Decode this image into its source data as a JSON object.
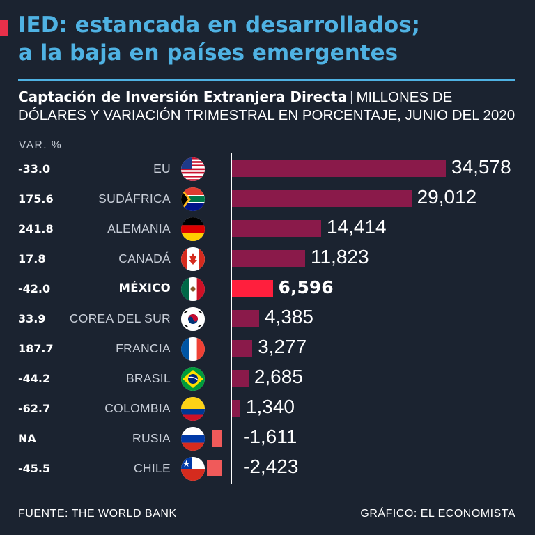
{
  "header": {
    "title_line1": "IED: estancada en desarrollados;",
    "title_line2": "a la baja en países emergentes",
    "subtitle_bold": "Captación de Inversión Extranjera Directa",
    "subtitle_sep": "|",
    "subtitle_line1_rest": "MILLONES DE",
    "subtitle_line2": "DÓLARES Y VARIACIÓN TRIMESTRAL EN PORCENTAJE, JUNIO DEL 2020",
    "var_column_header": "VAR. %"
  },
  "footer": {
    "source": "FUENTE: THE WORLD BANK",
    "credit": "GRÁFICO: EL ECONOMISTA"
  },
  "colors": {
    "title": "#4fb2e3",
    "background": "#1b2330",
    "positive_bar": "#8a1a4a",
    "negative_bar": "#f05a5a",
    "highlight_bar": "#ff1f3d"
  },
  "chart_data": {
    "type": "bar",
    "orientation": "horizontal",
    "xlim": [
      -2423,
      34578
    ],
    "grid": false,
    "legend": "none",
    "categories": [
      "EU",
      "SUDÁFRICA",
      "ALEMANIA",
      "CANADÁ",
      "MÉXICO",
      "COREA DEL SUR",
      "FRANCIA",
      "BRASIL",
      "COLOMBIA",
      "RUSIA",
      "CHILE"
    ],
    "values": [
      34578,
      29012,
      14414,
      11823,
      6596,
      4385,
      3277,
      2685,
      1340,
      -1611,
      -2423
    ],
    "value_labels": [
      "34,578",
      "29,012",
      "14,414",
      "11,823",
      "6,596",
      "4,385",
      "3,277",
      "2,685",
      "1,340",
      "-1,611",
      "-2,423"
    ],
    "var_pct_labels": [
      "-33.0",
      "175.6",
      "241.8",
      "17.8",
      "-42.0",
      "33.9",
      "187.7",
      "-44.2",
      "-62.7",
      "NA",
      "-45.5"
    ],
    "flag_icons": [
      "us-flag-icon",
      "south-africa-flag-icon",
      "germany-flag-icon",
      "canada-flag-icon",
      "mexico-flag-icon",
      "south-korea-flag-icon",
      "france-flag-icon",
      "brazil-flag-icon",
      "colombia-flag-icon",
      "russia-flag-icon",
      "chile-flag-icon"
    ],
    "highlight": "MÉXICO"
  }
}
